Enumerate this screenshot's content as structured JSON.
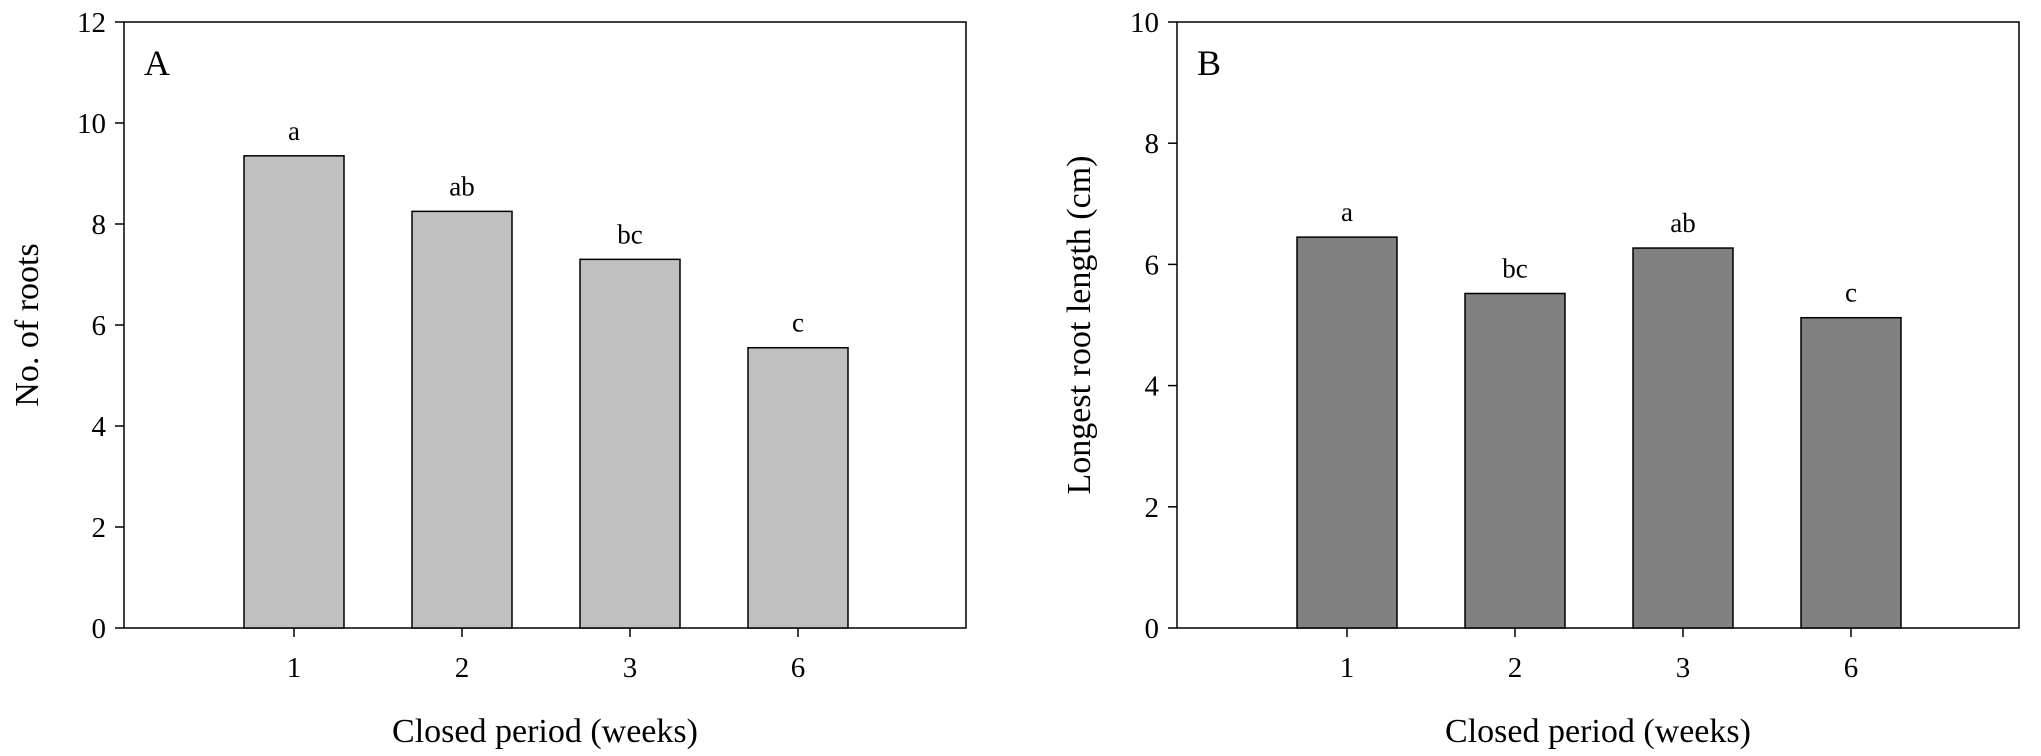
{
  "chart_data": [
    {
      "type": "bar",
      "panel_label": "A",
      "categories": [
        "1",
        "2",
        "3",
        "6"
      ],
      "values": [
        9.35,
        8.25,
        7.3,
        5.55
      ],
      "significance_labels": [
        "a",
        "ab",
        "bc",
        "c"
      ],
      "xlabel": "Closed period (weeks)",
      "ylabel": "No. of roots",
      "ylim": [
        0,
        12
      ],
      "yticks": [
        0,
        2,
        4,
        6,
        8,
        10,
        12
      ],
      "bar_color": "#c0c0c0",
      "grid": false
    },
    {
      "type": "bar",
      "panel_label": "B",
      "categories": [
        "1",
        "2",
        "3",
        "6"
      ],
      "values": [
        6.45,
        5.52,
        6.27,
        5.12
      ],
      "significance_labels": [
        "a",
        "bc",
        "ab",
        "c"
      ],
      "xlabel": "Closed period (weeks)",
      "ylabel": "Longest root length (cm)",
      "ylim": [
        0,
        10
      ],
      "yticks": [
        0,
        2,
        4,
        6,
        8,
        10
      ],
      "bar_color": "#808080",
      "grid": false
    }
  ]
}
